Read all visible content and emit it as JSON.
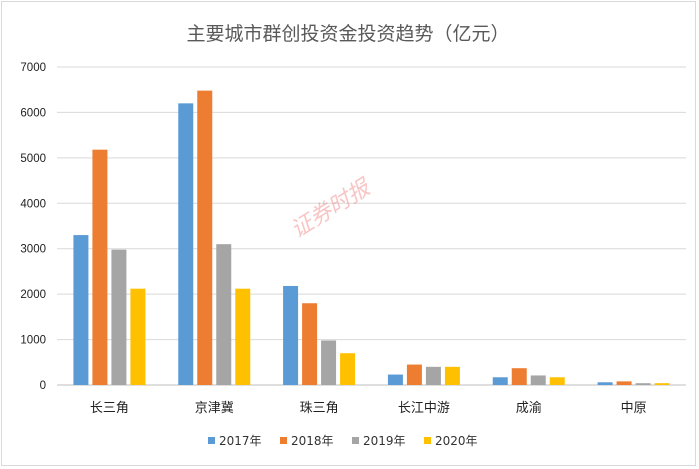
{
  "chart_data": {
    "type": "bar",
    "title": "主要城市群创投资金投资趋势（亿元）",
    "categories": [
      "长三角",
      "京津冀",
      "珠三角",
      "长江中游",
      "成渝",
      "中原"
    ],
    "series": [
      {
        "name": "2017年",
        "color": "#5B9BD5",
        "values": [
          3300,
          6200,
          2180,
          230,
          170,
          60
        ]
      },
      {
        "name": "2018年",
        "color": "#ED7D31",
        "values": [
          5180,
          6480,
          1800,
          450,
          370,
          80
        ]
      },
      {
        "name": "2019年",
        "color": "#A5A5A5",
        "values": [
          2980,
          3100,
          980,
          400,
          210,
          40
        ]
      },
      {
        "name": "2020年",
        "color": "#FFC000",
        "values": [
          2120,
          2120,
          700,
          400,
          170,
          40
        ]
      }
    ],
    "ylim": [
      0,
      7000
    ],
    "yticks": [
      0,
      1000,
      2000,
      3000,
      4000,
      5000,
      6000,
      7000
    ],
    "grid": true,
    "legend_position": "bottom"
  },
  "watermark": "证券时报"
}
